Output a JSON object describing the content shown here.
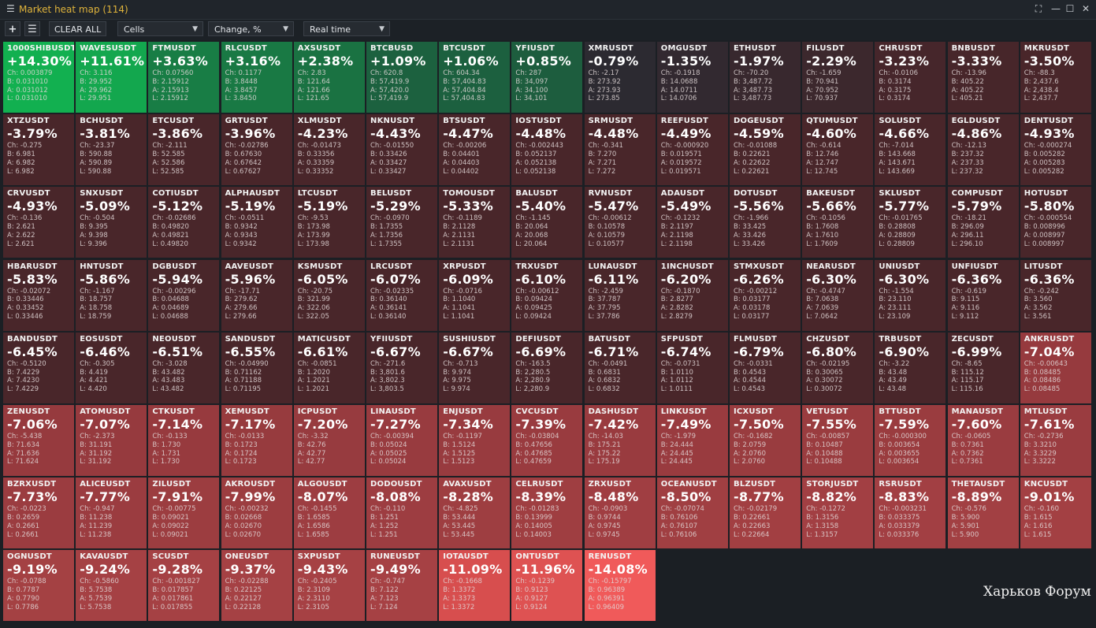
{
  "window": {
    "title": "Market heat map (114)"
  },
  "toolbar": {
    "add_label": "+",
    "list_label": "☰",
    "clear_label": "CLEAR ALL",
    "view_value": "Cells",
    "metric_value": "Change, %",
    "mode_value": "Real time"
  },
  "colors": {
    "green_strong": "#12b050",
    "neutral": "#232b33",
    "red_strong": "#f05a5a"
  },
  "watermark": "Харьков Форум",
  "cells": [
    {
      "sym": "1000SHIBUSDT",
      "pct": "+14.30%",
      "v": 14.3,
      "ch": "0.003879",
      "b": "0.031010",
      "a": "0.031012",
      "l": "0.031010"
    },
    {
      "sym": "WAVESUSDT",
      "pct": "+11.61%",
      "v": 11.61,
      "ch": "3.116",
      "b": "29.952",
      "a": "29.962",
      "l": "29.951"
    },
    {
      "sym": "FTMUSDT",
      "pct": "+3.63%",
      "v": 3.63,
      "ch": "0.07560",
      "b": "2.15912",
      "a": "2.15913",
      "l": "2.15912"
    },
    {
      "sym": "RLCUSDT",
      "pct": "+3.16%",
      "v": 3.16,
      "ch": "0.1177",
      "b": "3.8448",
      "a": "3.8457",
      "l": "3.8450"
    },
    {
      "sym": "AXSUSDT",
      "pct": "+2.38%",
      "v": 2.38,
      "ch": "2.83",
      "b": "121.64",
      "a": "121.66",
      "l": "121.65"
    },
    {
      "sym": "BTCBUSD",
      "pct": "+1.09%",
      "v": 1.09,
      "ch": "620.8",
      "b": "57,419.9",
      "a": "57,420.0",
      "l": "57,419.9"
    },
    {
      "sym": "BTCUSDT",
      "pct": "+1.06%",
      "v": 1.06,
      "ch": "604.34",
      "b": "57,404.83",
      "a": "57,404.84",
      "l": "57,404.83"
    },
    {
      "sym": "YFIUSDT",
      "pct": "+0.85%",
      "v": 0.85,
      "ch": "287",
      "b": "34,097",
      "a": "34,100",
      "l": "34,101"
    },
    {
      "sym": "XMRUSDT",
      "pct": "-0.79%",
      "v": -0.79,
      "ch": "-2.17",
      "b": "273.92",
      "a": "273.93",
      "l": "273.85"
    },
    {
      "sym": "OMGUSDT",
      "pct": "-1.35%",
      "v": -1.35,
      "ch": "-0.1918",
      "b": "14.0688",
      "a": "14.0711",
      "l": "14.0706"
    },
    {
      "sym": "ETHUSDT",
      "pct": "-1.97%",
      "v": -1.97,
      "ch": "-70.20",
      "b": "3,487.72",
      "a": "3,487.73",
      "l": "3,487.73"
    },
    {
      "sym": "FILUSDT",
      "pct": "-2.29%",
      "v": -2.29,
      "ch": "-1.659",
      "b": "70.941",
      "a": "70.952",
      "l": "70.937"
    },
    {
      "sym": "CHRUSDT",
      "pct": "-3.23%",
      "v": -3.23,
      "ch": "-0.0106",
      "b": "0.3174",
      "a": "0.3175",
      "l": "0.3174"
    },
    {
      "sym": "BNBUSDT",
      "pct": "-3.33%",
      "v": -3.33,
      "ch": "-13.96",
      "b": "405.22",
      "a": "405.22",
      "l": "405.21"
    },
    {
      "sym": "MKRUSDT",
      "pct": "-3.50%",
      "v": -3.5,
      "ch": "-88.3",
      "b": "2,437.6",
      "a": "2,438.4",
      "l": "2,437.7"
    },
    {
      "sym": "XTZUSDT",
      "pct": "-3.79%",
      "v": -3.79,
      "ch": "-0.275",
      "b": "6.981",
      "a": "6.982",
      "l": "6.982"
    },
    {
      "sym": "BCHUSDT",
      "pct": "-3.81%",
      "v": -3.81,
      "ch": "-23.37",
      "b": "590.88",
      "a": "590.89",
      "l": "590.88"
    },
    {
      "sym": "ETCUSDT",
      "pct": "-3.86%",
      "v": -3.86,
      "ch": "-2.111",
      "b": "52.585",
      "a": "52.586",
      "l": "52.585"
    },
    {
      "sym": "GRTUSDT",
      "pct": "-3.96%",
      "v": -3.96,
      "ch": "-0.02786",
      "b": "0.67630",
      "a": "0.67642",
      "l": "0.67627"
    },
    {
      "sym": "XLMUSDT",
      "pct": "-4.23%",
      "v": -4.23,
      "ch": "-0.01473",
      "b": "0.33356",
      "a": "0.33359",
      "l": "0.33352"
    },
    {
      "sym": "NKNUSDT",
      "pct": "-4.43%",
      "v": -4.43,
      "ch": "-0.01550",
      "b": "0.33426",
      "a": "0.33427",
      "l": "0.33427"
    },
    {
      "sym": "BTSUSDT",
      "pct": "-4.47%",
      "v": -4.47,
      "ch": "-0.00206",
      "b": "0.04401",
      "a": "0.04403",
      "l": "0.04402"
    },
    {
      "sym": "IOSTUSDT",
      "pct": "-4.48%",
      "v": -4.48,
      "ch": "-0.002443",
      "b": "0.052137",
      "a": "0.052138",
      "l": "0.052138"
    },
    {
      "sym": "SRMUSDT",
      "pct": "-4.48%",
      "v": -4.48,
      "ch": "-0.341",
      "b": "7.270",
      "a": "7.271",
      "l": "7.272"
    },
    {
      "sym": "REEFUSDT",
      "pct": "-4.49%",
      "v": -4.49,
      "ch": "-0.000920",
      "b": "0.019571",
      "a": "0.019572",
      "l": "0.019571"
    },
    {
      "sym": "DOGEUSDT",
      "pct": "-4.59%",
      "v": -4.59,
      "ch": "-0.01088",
      "b": "0.22621",
      "a": "0.22622",
      "l": "0.22621"
    },
    {
      "sym": "QTUMUSDT",
      "pct": "-4.60%",
      "v": -4.6,
      "ch": "-0.614",
      "b": "12.746",
      "a": "12.747",
      "l": "12.745"
    },
    {
      "sym": "SOLUSDT",
      "pct": "-4.66%",
      "v": -4.66,
      "ch": "-7.014",
      "b": "143.668",
      "a": "143.671",
      "l": "143.669"
    },
    {
      "sym": "EGLDUSDT",
      "pct": "-4.86%",
      "v": -4.86,
      "ch": "-12.13",
      "b": "237.32",
      "a": "237.33",
      "l": "237.32"
    },
    {
      "sym": "DENTUSDT",
      "pct": "-4.93%",
      "v": -4.93,
      "ch": "-0.000274",
      "b": "0.005282",
      "a": "0.005283",
      "l": "0.005282"
    },
    {
      "sym": "CRVUSDT",
      "pct": "-4.93%",
      "v": -4.93,
      "ch": "-0.136",
      "b": "2.621",
      "a": "2.622",
      "l": "2.621"
    },
    {
      "sym": "SNXUSDT",
      "pct": "-5.09%",
      "v": -5.09,
      "ch": "-0.504",
      "b": "9.395",
      "a": "9.398",
      "l": "9.396"
    },
    {
      "sym": "COTIUSDT",
      "pct": "-5.12%",
      "v": -5.12,
      "ch": "-0.02686",
      "b": "0.49820",
      "a": "0.49821",
      "l": "0.49820"
    },
    {
      "sym": "ALPHAUSDT",
      "pct": "-5.19%",
      "v": -5.19,
      "ch": "-0.0511",
      "b": "0.9342",
      "a": "0.9343",
      "l": "0.9342"
    },
    {
      "sym": "LTCUSDT",
      "pct": "-5.19%",
      "v": -5.19,
      "ch": "-9.53",
      "b": "173.98",
      "a": "173.99",
      "l": "173.98"
    },
    {
      "sym": "BELUSDT",
      "pct": "-5.29%",
      "v": -5.29,
      "ch": "-0.0970",
      "b": "1.7355",
      "a": "1.7356",
      "l": "1.7355"
    },
    {
      "sym": "TOMOUSDT",
      "pct": "-5.33%",
      "v": -5.33,
      "ch": "-0.1189",
      "b": "2.1128",
      "a": "2.1131",
      "l": "2.1131"
    },
    {
      "sym": "BALUSDT",
      "pct": "-5.40%",
      "v": -5.4,
      "ch": "-1.145",
      "b": "20.064",
      "a": "20.068",
      "l": "20.064"
    },
    {
      "sym": "RVNUSDT",
      "pct": "-5.47%",
      "v": -5.47,
      "ch": "-0.00612",
      "b": "0.10578",
      "a": "0.10579",
      "l": "0.10577"
    },
    {
      "sym": "ADAUSDT",
      "pct": "-5.49%",
      "v": -5.49,
      "ch": "-0.1232",
      "b": "2.1197",
      "a": "2.1198",
      "l": "2.1198"
    },
    {
      "sym": "DOTUSDT",
      "pct": "-5.56%",
      "v": -5.56,
      "ch": "-1.966",
      "b": "33.425",
      "a": "33.426",
      "l": "33.426"
    },
    {
      "sym": "BAKEUSDT",
      "pct": "-5.66%",
      "v": -5.66,
      "ch": "-0.1056",
      "b": "1.7608",
      "a": "1.7610",
      "l": "1.7609"
    },
    {
      "sym": "SKLUSDT",
      "pct": "-5.77%",
      "v": -5.77,
      "ch": "-0.01765",
      "b": "0.28808",
      "a": "0.28809",
      "l": "0.28809"
    },
    {
      "sym": "COMPUSDT",
      "pct": "-5.79%",
      "v": -5.79,
      "ch": "-18.21",
      "b": "296.09",
      "a": "296.11",
      "l": "296.10"
    },
    {
      "sym": "HOTUSDT",
      "pct": "-5.80%",
      "v": -5.8,
      "ch": "-0.000554",
      "b": "0.008996",
      "a": "0.008997",
      "l": "0.008997"
    },
    {
      "sym": "HBARUSDT",
      "pct": "-5.83%",
      "v": -5.83,
      "ch": "-0.02072",
      "b": "0.33446",
      "a": "0.33452",
      "l": "0.33446"
    },
    {
      "sym": "HNTUSDT",
      "pct": "-5.86%",
      "v": -5.86,
      "ch": "-1.167",
      "b": "18.757",
      "a": "18.758",
      "l": "18.759"
    },
    {
      "sym": "DGBUSDT",
      "pct": "-5.94%",
      "v": -5.94,
      "ch": "-0.00296",
      "b": "0.04688",
      "a": "0.04689",
      "l": "0.04688"
    },
    {
      "sym": "AAVEUSDT",
      "pct": "-5.96%",
      "v": -5.96,
      "ch": "-17.71",
      "b": "279.62",
      "a": "279.66",
      "l": "279.66"
    },
    {
      "sym": "KSMUSDT",
      "pct": "-6.05%",
      "v": -6.05,
      "ch": "-20.75",
      "b": "321.99",
      "a": "322.06",
      "l": "322.05"
    },
    {
      "sym": "LRCUSDT",
      "pct": "-6.07%",
      "v": -6.07,
      "ch": "-0.02335",
      "b": "0.36140",
      "a": "0.36141",
      "l": "0.36140"
    },
    {
      "sym": "XRPUSDT",
      "pct": "-6.09%",
      "v": -6.09,
      "ch": "-0.0716",
      "b": "1.1040",
      "a": "1.1041",
      "l": "1.1041"
    },
    {
      "sym": "TRXUSDT",
      "pct": "-6.10%",
      "v": -6.1,
      "ch": "-0.00612",
      "b": "0.09424",
      "a": "0.09425",
      "l": "0.09424"
    },
    {
      "sym": "LUNAUSDT",
      "pct": "-6.11%",
      "v": -6.11,
      "ch": "-2.459",
      "b": "37.787",
      "a": "37.795",
      "l": "37.786"
    },
    {
      "sym": "1INCHUSDT",
      "pct": "-6.20%",
      "v": -6.2,
      "ch": "-0.1870",
      "b": "2.8277",
      "a": "2.8282",
      "l": "2.8279"
    },
    {
      "sym": "STMXUSDT",
      "pct": "-6.26%",
      "v": -6.26,
      "ch": "-0.00212",
      "b": "0.03177",
      "a": "0.03178",
      "l": "0.03177"
    },
    {
      "sym": "NEARUSDT",
      "pct": "-6.30%",
      "v": -6.3,
      "ch": "-0.4747",
      "b": "7.0638",
      "a": "7.0639",
      "l": "7.0642"
    },
    {
      "sym": "UNIUSDT",
      "pct": "-6.30%",
      "v": -6.3,
      "ch": "-1.554",
      "b": "23.110",
      "a": "23.111",
      "l": "23.109"
    },
    {
      "sym": "UNFIUSDT",
      "pct": "-6.36%",
      "v": -6.36,
      "ch": "-0.619",
      "b": "9.115",
      "a": "9.116",
      "l": "9.112"
    },
    {
      "sym": "LITUSDT",
      "pct": "-6.36%",
      "v": -6.36,
      "ch": "-0.242",
      "b": "3.560",
      "a": "3.562",
      "l": "3.561"
    },
    {
      "sym": "BANDUSDT",
      "pct": "-6.45%",
      "v": -6.45,
      "ch": "-0.5120",
      "b": "7.4229",
      "a": "7.4230",
      "l": "7.4229"
    },
    {
      "sym": "EOSUSDT",
      "pct": "-6.46%",
      "v": -6.46,
      "ch": "-0.305",
      "b": "4.419",
      "a": "4.421",
      "l": "4.420"
    },
    {
      "sym": "NEOUSDT",
      "pct": "-6.51%",
      "v": -6.51,
      "ch": "-3.028",
      "b": "43.482",
      "a": "43.483",
      "l": "43.482"
    },
    {
      "sym": "SANDUSDT",
      "pct": "-6.55%",
      "v": -6.55,
      "ch": "-0.04990",
      "b": "0.71162",
      "a": "0.71188",
      "l": "0.71195"
    },
    {
      "sym": "MATICUSDT",
      "pct": "-6.61%",
      "v": -6.61,
      "ch": "-0.0851",
      "b": "1.2020",
      "a": "1.2021",
      "l": "1.2021"
    },
    {
      "sym": "YFIIUSDT",
      "pct": "-6.67%",
      "v": -6.67,
      "ch": "-271.6",
      "b": "3,801.6",
      "a": "3,802.3",
      "l": "3,803.5"
    },
    {
      "sym": "SUSHIUSDT",
      "pct": "-6.67%",
      "v": -6.67,
      "ch": "-0.713",
      "b": "9.974",
      "a": "9.975",
      "l": "9.974"
    },
    {
      "sym": "DEFIUSDT",
      "pct": "-6.69%",
      "v": -6.69,
      "ch": "-163.5",
      "b": "2,280.5",
      "a": "2,280.9",
      "l": "2,280.9"
    },
    {
      "sym": "BATUSDT",
      "pct": "-6.71%",
      "v": -6.71,
      "ch": "-0.0491",
      "b": "0.6831",
      "a": "0.6832",
      "l": "0.6832"
    },
    {
      "sym": "SFPUSDT",
      "pct": "-6.74%",
      "v": -6.74,
      "ch": "-0.0731",
      "b": "1.0110",
      "a": "1.0112",
      "l": "1.0111"
    },
    {
      "sym": "FLMUSDT",
      "pct": "-6.79%",
      "v": -6.79,
      "ch": "-0.0331",
      "b": "0.4543",
      "a": "0.4544",
      "l": "0.4543"
    },
    {
      "sym": "CHZUSDT",
      "pct": "-6.80%",
      "v": -6.8,
      "ch": "-0.02195",
      "b": "0.30065",
      "a": "0.30072",
      "l": "0.30072"
    },
    {
      "sym": "TRBUSDT",
      "pct": "-6.90%",
      "v": -6.9,
      "ch": "-3.22",
      "b": "43.48",
      "a": "43.49",
      "l": "43.48"
    },
    {
      "sym": "ZECUSDT",
      "pct": "-6.99%",
      "v": -6.99,
      "ch": "-8.65",
      "b": "115.12",
      "a": "115.17",
      "l": "115.16"
    },
    {
      "sym": "ANKRUSDT",
      "pct": "-7.04%",
      "v": -7.04,
      "ch": "-0.00643",
      "b": "0.08485",
      "a": "0.08486",
      "l": "0.08485"
    },
    {
      "sym": "ZENUSDT",
      "pct": "-7.06%",
      "v": -7.06,
      "ch": "-5.438",
      "b": "71.634",
      "a": "71.636",
      "l": "71.624"
    },
    {
      "sym": "ATOMUSDT",
      "pct": "-7.07%",
      "v": -7.07,
      "ch": "-2.373",
      "b": "31.191",
      "a": "31.192",
      "l": "31.192"
    },
    {
      "sym": "CTKUSDT",
      "pct": "-7.14%",
      "v": -7.14,
      "ch": "-0.133",
      "b": "1.730",
      "a": "1.731",
      "l": "1.730"
    },
    {
      "sym": "XEMUSDT",
      "pct": "-7.17%",
      "v": -7.17,
      "ch": "-0.0133",
      "b": "0.1723",
      "a": "0.1724",
      "l": "0.1723"
    },
    {
      "sym": "ICPUSDT",
      "pct": "-7.20%",
      "v": -7.2,
      "ch": "-3.32",
      "b": "42.76",
      "a": "42.77",
      "l": "42.77"
    },
    {
      "sym": "LINAUSDT",
      "pct": "-7.27%",
      "v": -7.27,
      "ch": "-0.00394",
      "b": "0.05024",
      "a": "0.05025",
      "l": "0.05024"
    },
    {
      "sym": "ENJUSDT",
      "pct": "-7.34%",
      "v": -7.34,
      "ch": "-0.1197",
      "b": "1.5124",
      "a": "1.5125",
      "l": "1.5123"
    },
    {
      "sym": "CVCUSDT",
      "pct": "-7.39%",
      "v": -7.39,
      "ch": "-0.03804",
      "b": "0.47656",
      "a": "0.47685",
      "l": "0.47659"
    },
    {
      "sym": "DASHUSDT",
      "pct": "-7.42%",
      "v": -7.42,
      "ch": "-14.03",
      "b": "175.21",
      "a": "175.22",
      "l": "175.19"
    },
    {
      "sym": "LINKUSDT",
      "pct": "-7.49%",
      "v": -7.49,
      "ch": "-1.979",
      "b": "24.444",
      "a": "24.445",
      "l": "24.445"
    },
    {
      "sym": "ICXUSDT",
      "pct": "-7.50%",
      "v": -7.5,
      "ch": "-0.1682",
      "b": "2.0759",
      "a": "2.0760",
      "l": "2.0760"
    },
    {
      "sym": "VETUSDT",
      "pct": "-7.55%",
      "v": -7.55,
      "ch": "-0.00857",
      "b": "0.10487",
      "a": "0.10488",
      "l": "0.10488"
    },
    {
      "sym": "BTTUSDT",
      "pct": "-7.59%",
      "v": -7.59,
      "ch": "-0.000300",
      "b": "0.003654",
      "a": "0.003655",
      "l": "0.003654"
    },
    {
      "sym": "MANAUSDT",
      "pct": "-7.60%",
      "v": -7.6,
      "ch": "-0.0605",
      "b": "0.7361",
      "a": "0.7362",
      "l": "0.7361"
    },
    {
      "sym": "MTLUSDT",
      "pct": "-7.61%",
      "v": -7.61,
      "ch": "-0.2736",
      "b": "3.3210",
      "a": "3.3229",
      "l": "3.3222"
    },
    {
      "sym": "BZRXUSDT",
      "pct": "-7.73%",
      "v": -7.73,
      "ch": "-0.0223",
      "b": "0.2659",
      "a": "0.2661",
      "l": "0.2661"
    },
    {
      "sym": "ALICEUSDT",
      "pct": "-7.77%",
      "v": -7.77,
      "ch": "-0.947",
      "b": "11.238",
      "a": "11.239",
      "l": "11.238"
    },
    {
      "sym": "ZILUSDT",
      "pct": "-7.91%",
      "v": -7.91,
      "ch": "-0.00775",
      "b": "0.09021",
      "a": "0.09022",
      "l": "0.09021"
    },
    {
      "sym": "AKROUSDT",
      "pct": "-7.99%",
      "v": -7.99,
      "ch": "-0.00232",
      "b": "0.02668",
      "a": "0.02670",
      "l": "0.02670"
    },
    {
      "sym": "ALGOUSDT",
      "pct": "-8.07%",
      "v": -8.07,
      "ch": "-0.1455",
      "b": "1.6585",
      "a": "1.6586",
      "l": "1.6585"
    },
    {
      "sym": "DODOUSDT",
      "pct": "-8.08%",
      "v": -8.08,
      "ch": "-0.110",
      "b": "1.251",
      "a": "1.252",
      "l": "1.251"
    },
    {
      "sym": "AVAXUSDT",
      "pct": "-8.28%",
      "v": -8.28,
      "ch": "-4.825",
      "b": "53.444",
      "a": "53.445",
      "l": "53.445"
    },
    {
      "sym": "CELRUSDT",
      "pct": "-8.39%",
      "v": -8.39,
      "ch": "-0.01283",
      "b": "0.13999",
      "a": "0.14005",
      "l": "0.14003"
    },
    {
      "sym": "ZRXUSDT",
      "pct": "-8.48%",
      "v": -8.48,
      "ch": "-0.0903",
      "b": "0.9744",
      "a": "0.9745",
      "l": "0.9745"
    },
    {
      "sym": "OCEANUSDT",
      "pct": "-8.50%",
      "v": -8.5,
      "ch": "-0.07074",
      "b": "0.76106",
      "a": "0.76107",
      "l": "0.76106"
    },
    {
      "sym": "BLZUSDT",
      "pct": "-8.77%",
      "v": -8.77,
      "ch": "-0.02179",
      "b": "0.22661",
      "a": "0.22663",
      "l": "0.22664"
    },
    {
      "sym": "STORJUSDT",
      "pct": "-8.82%",
      "v": -8.82,
      "ch": "-0.1272",
      "b": "1.3156",
      "a": "1.3158",
      "l": "1.3157"
    },
    {
      "sym": "RSRUSDT",
      "pct": "-8.83%",
      "v": -8.83,
      "ch": "-0.003231",
      "b": "0.033375",
      "a": "0.033379",
      "l": "0.033376"
    },
    {
      "sym": "THETAUSDT",
      "pct": "-8.89%",
      "v": -8.89,
      "ch": "-0.576",
      "b": "5.900",
      "a": "5.901",
      "l": "5.900"
    },
    {
      "sym": "KNCUSDT",
      "pct": "-9.01%",
      "v": -9.01,
      "ch": "-0.160",
      "b": "1.615",
      "a": "1.616",
      "l": "1.615"
    },
    {
      "sym": "OGNUSDT",
      "pct": "-9.19%",
      "v": -9.19,
      "ch": "-0.0788",
      "b": "0.7787",
      "a": "0.7790",
      "l": "0.7786"
    },
    {
      "sym": "KAVAUSDT",
      "pct": "-9.24%",
      "v": -9.24,
      "ch": "-0.5860",
      "b": "5.7538",
      "a": "5.7539",
      "l": "5.7538"
    },
    {
      "sym": "SCUSDT",
      "pct": "-9.28%",
      "v": -9.28,
      "ch": "-0.001827",
      "b": "0.017857",
      "a": "0.017861",
      "l": "0.017855"
    },
    {
      "sym": "ONEUSDT",
      "pct": "-9.37%",
      "v": -9.37,
      "ch": "-0.02288",
      "b": "0.22125",
      "a": "0.22127",
      "l": "0.22128"
    },
    {
      "sym": "SXPUSDT",
      "pct": "-9.43%",
      "v": -9.43,
      "ch": "-0.2405",
      "b": "2.3109",
      "a": "2.3110",
      "l": "2.3105"
    },
    {
      "sym": "RUNEUSDT",
      "pct": "-9.49%",
      "v": -9.49,
      "ch": "-0.747",
      "b": "7.122",
      "a": "7.123",
      "l": "7.124"
    },
    {
      "sym": "IOTAUSDT",
      "pct": "-11.09%",
      "v": -11.09,
      "ch": "-0.1668",
      "b": "1.3372",
      "a": "1.3373",
      "l": "1.3372"
    },
    {
      "sym": "ONTUSDT",
      "pct": "-11.96%",
      "v": -11.96,
      "ch": "-0.1239",
      "b": "0.9123",
      "a": "0.9127",
      "l": "0.9124"
    },
    {
      "sym": "RENUSDT",
      "pct": "-14.08%",
      "v": -14.08,
      "ch": "-0.15797",
      "b": "0.96389",
      "a": "0.96391",
      "l": "0.96409"
    }
  ]
}
